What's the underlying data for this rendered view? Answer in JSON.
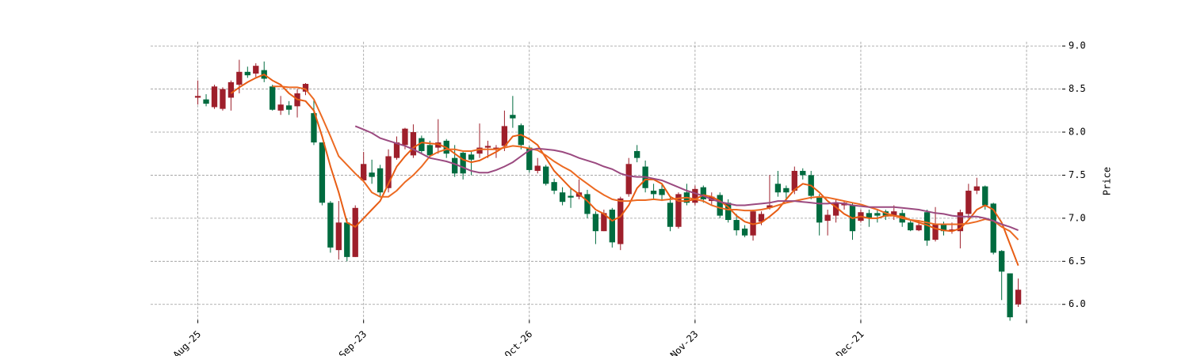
{
  "chart_data": {
    "type": "candlestick",
    "ylabel": "Price",
    "grid": true,
    "up_color": "#9e1f2b",
    "down_color": "#006b3f",
    "xlim": [
      -5.7,
      104.3
    ],
    "xticks": [
      {
        "value": 0,
        "label": "-Aug-25"
      },
      {
        "value": 20,
        "label": "-Sep-23"
      },
      {
        "value": 40,
        "label": "-Oct-26"
      },
      {
        "value": 60,
        "label": "-Nov-23"
      },
      {
        "value": 80,
        "label": "-Dec-21"
      },
      100
    ],
    "ylim": [
      5.8,
      9.05
    ],
    "yticks": [
      {
        "value": 6,
        "label": "6.0"
      },
      6.5,
      {
        "value": 7,
        "label": "7.0"
      },
      7.5,
      {
        "value": 8,
        "label": "8.0"
      },
      8.5,
      {
        "value": 9,
        "label": "9.0"
      }
    ],
    "open": [
      8.4,
      8.38,
      8.29,
      8.27,
      8.4,
      8.55,
      8.7,
      8.68,
      8.72,
      8.53,
      8.25,
      8.31,
      8.3,
      8.47,
      8.22,
      7.88,
      7.18,
      6.63,
      6.95,
      6.55,
      7.44,
      7.53,
      7.58,
      7.35,
      7.7,
      7.85,
      7.73,
      7.93,
      7.85,
      7.82,
      7.9,
      7.7,
      7.76,
      7.74,
      7.75,
      7.82,
      7.8,
      7.84,
      8.2,
      8.08,
      7.82,
      7.55,
      7.6,
      7.42,
      7.3,
      7.26,
      7.25,
      7.28,
      7.05,
      6.85,
      7.1,
      6.7,
      7.28,
      7.78,
      7.6,
      7.32,
      7.34,
      7.18,
      6.9,
      7.3,
      7.18,
      7.36,
      7.2,
      7.27,
      7.18,
      6.98,
      6.88,
      6.8,
      6.96,
      7.12,
      7.4,
      7.35,
      7.32,
      7.55,
      7.5,
      7.24,
      6.97,
      7.03,
      7.15,
      7.15,
      6.97,
      7.06,
      7.06,
      7.08,
      7.03,
      7.06,
      6.95,
      6.86,
      7.07,
      6.75,
      6.93,
      6.85,
      6.85,
      7.05,
      7.32,
      7.37,
      7.17,
      6.62,
      6.36,
      6.0
    ],
    "high": [
      8.6,
      8.44,
      8.55,
      8.52,
      8.6,
      8.84,
      8.76,
      8.8,
      8.82,
      8.55,
      8.42,
      8.36,
      8.5,
      8.57,
      8.38,
      7.88,
      7.2,
      7.2,
      7.0,
      7.15,
      7.77,
      7.68,
      7.62,
      7.8,
      7.95,
      8.05,
      8.09,
      7.96,
      7.9,
      8.15,
      7.92,
      7.85,
      7.78,
      7.78,
      8.1,
      7.9,
      7.85,
      8.25,
      8.42,
      8.1,
      7.84,
      7.7,
      7.62,
      7.46,
      7.36,
      7.35,
      7.45,
      7.33,
      7.08,
      7.1,
      7.12,
      7.25,
      7.7,
      7.85,
      7.67,
      7.4,
      7.4,
      7.24,
      7.3,
      7.4,
      7.38,
      7.38,
      7.3,
      7.3,
      7.22,
      7.05,
      6.92,
      7.1,
      7.08,
      7.5,
      7.55,
      7.38,
      7.6,
      7.58,
      7.55,
      7.28,
      7.1,
      7.22,
      7.2,
      7.18,
      7.1,
      7.1,
      7.1,
      7.1,
      7.15,
      7.1,
      6.98,
      6.98,
      7.1,
      7.13,
      6.96,
      6.95,
      7.1,
      7.4,
      7.47,
      7.38,
      7.18,
      6.63,
      6.36,
      6.3
    ],
    "low": [
      8.32,
      8.3,
      8.27,
      8.25,
      8.25,
      8.45,
      8.63,
      8.64,
      8.58,
      8.25,
      8.2,
      8.2,
      8.17,
      8.43,
      7.85,
      7.15,
      6.6,
      6.52,
      6.5,
      6.55,
      7.42,
      7.4,
      7.25,
      7.3,
      7.68,
      7.8,
      7.7,
      7.75,
      7.7,
      7.75,
      7.7,
      7.48,
      7.45,
      7.5,
      7.7,
      7.7,
      7.7,
      7.78,
      8.05,
      7.8,
      7.53,
      7.52,
      7.38,
      7.28,
      7.15,
      7.12,
      7.22,
      7.0,
      6.7,
      6.85,
      6.66,
      6.63,
      7.25,
      7.65,
      7.3,
      7.22,
      7.2,
      6.85,
      6.88,
      7.15,
      7.15,
      7.18,
      7.15,
      7.0,
      6.95,
      6.8,
      6.78,
      6.74,
      6.92,
      7.1,
      7.25,
      7.2,
      7.28,
      7.45,
      7.22,
      6.8,
      6.8,
      6.95,
      7.1,
      6.75,
      6.95,
      6.9,
      6.95,
      6.98,
      6.98,
      6.9,
      6.85,
      6.85,
      6.68,
      6.73,
      6.8,
      6.82,
      6.65,
      7.0,
      7.28,
      7.1,
      6.58,
      6.05,
      5.81,
      5.97
    ],
    "close": [
      8.42,
      8.33,
      8.53,
      8.5,
      8.58,
      8.7,
      8.66,
      8.77,
      8.62,
      8.26,
      8.32,
      8.26,
      8.45,
      8.56,
      7.88,
      7.18,
      6.66,
      6.95,
      6.55,
      7.12,
      7.63,
      7.48,
      7.3,
      7.72,
      7.88,
      8.04,
      8.0,
      7.78,
      7.73,
      7.88,
      7.75,
      7.52,
      7.52,
      7.68,
      7.82,
      7.84,
      7.82,
      8.07,
      8.16,
      7.85,
      7.56,
      7.61,
      7.4,
      7.32,
      7.19,
      7.24,
      7.3,
      7.05,
      6.85,
      7.06,
      6.72,
      7.23,
      7.63,
      7.7,
      7.35,
      7.28,
      7.27,
      6.9,
      7.28,
      7.18,
      7.34,
      7.22,
      7.25,
      7.03,
      6.98,
      6.86,
      6.8,
      7.08,
      7.05,
      7.15,
      7.3,
      7.3,
      7.55,
      7.5,
      7.26,
      6.95,
      7.04,
      7.18,
      7.18,
      6.85,
      7.07,
      7.0,
      7.03,
      7.02,
      7.08,
      6.95,
      6.86,
      6.92,
      6.74,
      6.93,
      6.85,
      6.87,
      7.07,
      7.32,
      7.37,
      7.15,
      6.6,
      6.38,
      5.85,
      6.17
    ],
    "moving_averages": [
      {
        "color": "#e85d14",
        "values": [
          null,
          null,
          null,
          null,
          8.45,
          8.52,
          8.58,
          8.63,
          8.67,
          8.6,
          8.55,
          8.45,
          8.38,
          8.36,
          8.25,
          7.95,
          7.6,
          7.3,
          6.95,
          6.9,
          7.0,
          7.1,
          7.2,
          7.4,
          7.6,
          7.72,
          7.82,
          7.88,
          7.87,
          7.86,
          7.82,
          7.75,
          7.68,
          7.65,
          7.67,
          7.72,
          7.77,
          7.83,
          7.95,
          7.97,
          7.92,
          7.85,
          7.7,
          7.55,
          7.45,
          7.35,
          7.28,
          7.2,
          7.1,
          7.05,
          6.97,
          7.02,
          7.15,
          7.35,
          7.45,
          7.45,
          7.4,
          7.25,
          7.2,
          7.2,
          7.22,
          7.27,
          7.25,
          7.2,
          7.13,
          7.03,
          6.96,
          6.93,
          6.95,
          7.02,
          7.1,
          7.22,
          7.33,
          7.4,
          7.38,
          7.3,
          7.2,
          7.13,
          7.05,
          7.0,
          7.02,
          7.0,
          7.0,
          7.03,
          7.03,
          7.02,
          6.98,
          6.95,
          6.92,
          6.88,
          6.86,
          6.85,
          6.88,
          6.98,
          7.1,
          7.15,
          7.1,
          6.95,
          6.7,
          6.45
        ]
      },
      {
        "color": "#ec6a22",
        "values": [
          null,
          null,
          null,
          null,
          null,
          null,
          null,
          null,
          null,
          8.53,
          8.53,
          8.52,
          8.52,
          8.5,
          8.38,
          8.17,
          7.95,
          7.72,
          7.62,
          7.52,
          7.43,
          7.3,
          7.25,
          7.25,
          7.32,
          7.42,
          7.5,
          7.6,
          7.72,
          7.77,
          7.8,
          7.8,
          7.78,
          7.78,
          7.8,
          7.8,
          7.8,
          7.82,
          7.84,
          7.83,
          7.81,
          7.79,
          7.73,
          7.66,
          7.6,
          7.55,
          7.47,
          7.4,
          7.33,
          7.27,
          7.22,
          7.2,
          7.2,
          7.21,
          7.21,
          7.22,
          7.21,
          7.22,
          7.23,
          7.24,
          7.22,
          7.2,
          7.15,
          7.12,
          7.1,
          7.1,
          7.09,
          7.09,
          7.1,
          7.12,
          7.15,
          7.18,
          7.2,
          7.22,
          7.24,
          7.25,
          7.24,
          7.22,
          7.2,
          7.18,
          7.16,
          7.13,
          7.1,
          7.06,
          7.03,
          7.0,
          6.98,
          6.97,
          6.95,
          6.93,
          6.93,
          6.93,
          6.93,
          6.94,
          6.96,
          6.99,
          6.97,
          6.9,
          6.85,
          6.75
        ]
      },
      {
        "color": "#9b4a80",
        "values": [
          null,
          null,
          null,
          null,
          null,
          null,
          null,
          null,
          null,
          null,
          null,
          null,
          null,
          null,
          null,
          null,
          null,
          null,
          null,
          8.07,
          8.03,
          7.99,
          7.93,
          7.9,
          7.87,
          7.84,
          7.8,
          7.75,
          7.7,
          7.68,
          7.66,
          7.63,
          7.59,
          7.55,
          7.53,
          7.53,
          7.56,
          7.6,
          7.65,
          7.72,
          7.79,
          7.81,
          7.8,
          7.79,
          7.77,
          7.74,
          7.7,
          7.67,
          7.64,
          7.6,
          7.57,
          7.52,
          7.49,
          7.48,
          7.48,
          7.46,
          7.44,
          7.4,
          7.36,
          7.32,
          7.29,
          7.26,
          7.22,
          7.19,
          7.17,
          7.15,
          7.15,
          7.16,
          7.17,
          7.18,
          7.2,
          7.2,
          7.2,
          7.19,
          7.18,
          7.17,
          7.17,
          7.18,
          7.17,
          7.15,
          7.14,
          7.13,
          7.13,
          7.13,
          7.13,
          7.12,
          7.11,
          7.1,
          7.08,
          7.06,
          7.05,
          7.03,
          7.02,
          7.02,
          7.02,
          7.0,
          6.97,
          6.93,
          6.9,
          6.86
        ]
      }
    ]
  }
}
